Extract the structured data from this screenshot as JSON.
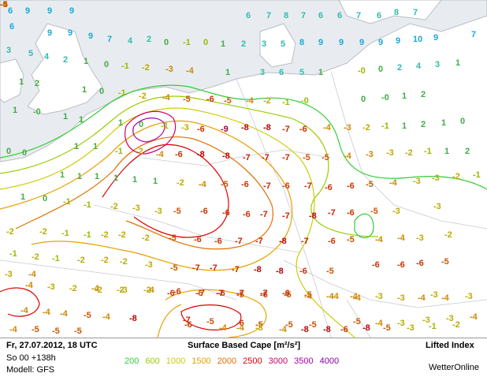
{
  "legend": {
    "date": "Fr, 27.07.2012, 18 UTC",
    "run": "So 00 +138h",
    "model": "Modell: GFS",
    "title": "Surface Based Cape [m²/s²]",
    "subtitle": "Lifted Index",
    "brand": "WetterOnline",
    "scale": [
      {
        "label": "200",
        "color": "#33cc33"
      },
      {
        "label": "600",
        "color": "#99cc00"
      },
      {
        "label": "1000",
        "color": "#cccc00"
      },
      {
        "label": "1500",
        "color": "#e6a000"
      },
      {
        "label": "2000",
        "color": "#e07000"
      },
      {
        "label": "2500",
        "color": "#dd0000"
      },
      {
        "label": "3000",
        "color": "#cc0066"
      },
      {
        "label": "3500",
        "color": "#aa00aa"
      },
      {
        "label": "4000",
        "color": "#8800aa"
      }
    ]
  },
  "map": {
    "labels": [
      {
        "v": "6",
        "c": "#1aa8d8"
      },
      {
        "v": "9",
        "c": "#1aa8d8"
      },
      {
        "v": "9",
        "c": "#1aa8d8"
      },
      {
        "v": "9",
        "c": "#1aa8d8"
      },
      {
        "v": "6",
        "c": "#33bbaa"
      },
      {
        "v": "7",
        "c": "#33bbaa"
      },
      {
        "v": "8",
        "c": "#33bbaa"
      },
      {
        "v": "7",
        "c": "#33bbaa"
      },
      {
        "v": "6",
        "c": "#33bbaa"
      },
      {
        "v": "6",
        "c": "#33bbaa"
      },
      {
        "v": "7",
        "c": "#33bbaa"
      },
      {
        "v": "6",
        "c": "#33bbaa"
      },
      {
        "v": "8",
        "c": "#33bbaa"
      },
      {
        "v": "7",
        "c": "#33bbaa"
      },
      {
        "v": "6",
        "c": "#1aa8d8"
      },
      {
        "v": "9",
        "c": "#1aa8d8"
      },
      {
        "v": "9",
        "c": "#1aa8d8"
      },
      {
        "v": "9",
        "c": "#1aa8d8"
      },
      {
        "v": "7",
        "c": "#1aa8d8"
      },
      {
        "v": "4",
        "c": "#33bbaa"
      },
      {
        "v": "2",
        "c": "#33bbaa"
      },
      {
        "v": "0",
        "c": "#44aa44"
      },
      {
        "v": "-1",
        "c": "#99bb00"
      },
      {
        "v": "0",
        "c": "#99bb00"
      },
      {
        "v": "1",
        "c": "#44aa44"
      },
      {
        "v": "2",
        "c": "#33bbaa"
      },
      {
        "v": "3",
        "c": "#33bbaa"
      },
      {
        "v": "5",
        "c": "#33bbaa"
      },
      {
        "v": "8",
        "c": "#1aa8d8"
      },
      {
        "v": "9",
        "c": "#1aa8d8"
      },
      {
        "v": "9",
        "c": "#1aa8d8"
      },
      {
        "v": "9",
        "c": "#1aa8d8"
      },
      {
        "v": "9",
        "c": "#1aa8d8"
      },
      {
        "v": "9",
        "c": "#1aa8d8"
      },
      {
        "v": "10",
        "c": "#1aa8d8"
      },
      {
        "v": "9",
        "c": "#1aa8d8"
      },
      {
        "v": "7",
        "c": "#1aa8d8"
      },
      {
        "v": "3",
        "c": "#33bbaa"
      },
      {
        "v": "5",
        "c": "#33bbaa"
      },
      {
        "v": "4",
        "c": "#33bbaa"
      },
      {
        "v": "2",
        "c": "#33bbaa"
      },
      {
        "v": "1",
        "c": "#44aa44"
      },
      {
        "v": "0",
        "c": "#44aa44"
      },
      {
        "v": "-1",
        "c": "#99bb00"
      },
      {
        "v": "-2",
        "c": "#bbaa00"
      },
      {
        "v": "-3",
        "c": "#cc8800"
      },
      {
        "v": "-4",
        "c": "#cc8800"
      },
      {
        "v": "1",
        "c": "#44aa44"
      },
      {
        "v": "3",
        "c": "#33bbaa"
      },
      {
        "v": "6",
        "c": "#33bbaa"
      },
      {
        "v": "5",
        "c": "#33bbaa"
      },
      {
        "v": "1",
        "c": "#44aa44"
      },
      {
        "v": "-0",
        "c": "#99bb00"
      },
      {
        "v": "0",
        "c": "#44aa44"
      },
      {
        "v": "2",
        "c": "#33bbaa"
      },
      {
        "v": "4",
        "c": "#33bbaa"
      },
      {
        "v": "3",
        "c": "#33bbaa"
      },
      {
        "v": "1",
        "c": "#44aa44"
      },
      {
        "v": "1",
        "c": "#44aa44"
      },
      {
        "v": "2",
        "c": "#44aa44"
      },
      {
        "v": "1",
        "c": "#44aa44"
      },
      {
        "v": "0",
        "c": "#44aa44"
      },
      {
        "v": "-1",
        "c": "#99bb00"
      },
      {
        "v": "-2",
        "c": "#bbaa00"
      },
      {
        "v": "-4",
        "c": "#cc8800"
      },
      {
        "v": "-5",
        "c": "#cc5500"
      },
      {
        "v": "-6",
        "c": "#cc3300"
      },
      {
        "v": "-5",
        "c": "#cc5500"
      },
      {
        "v": "-4",
        "c": "#cc8800"
      },
      {
        "v": "-2",
        "c": "#bbaa00"
      },
      {
        "v": "-1",
        "c": "#99bb00"
      },
      {
        "v": "-0",
        "c": "#99bb00"
      },
      {
        "v": "0",
        "c": "#44aa44"
      },
      {
        "v": "-0",
        "c": "#44aa44"
      },
      {
        "v": "1",
        "c": "#44aa44"
      },
      {
        "v": "2",
        "c": "#44aa44"
      },
      {
        "v": "1",
        "c": "#44aa44"
      },
      {
        "v": "-0",
        "c": "#44aa44"
      },
      {
        "v": "1",
        "c": "#44aa44"
      },
      {
        "v": "1",
        "c": "#44aa44"
      },
      {
        "v": "1",
        "c": "#44aa44"
      },
      {
        "v": "0",
        "c": "#44aa44"
      },
      {
        "v": "-1",
        "c": "#99bb00"
      },
      {
        "v": "-3",
        "c": "#bbaa00"
      },
      {
        "v": "-6",
        "c": "#cc3300"
      },
      {
        "v": "-9",
        "c": "#aa0044"
      },
      {
        "v": "-8",
        "c": "#bb0000"
      },
      {
        "v": "-8",
        "c": "#bb0000"
      },
      {
        "v": "-7",
        "c": "#cc2200"
      },
      {
        "v": "-6",
        "c": "#cc3300"
      },
      {
        "v": "-4",
        "c": "#cc8800"
      },
      {
        "v": "-3",
        "c": "#cc8800"
      },
      {
        "v": "-2",
        "c": "#bbaa00"
      },
      {
        "v": "-1",
        "c": "#99bb00"
      },
      {
        "v": "1",
        "c": "#44aa44"
      },
      {
        "v": "2",
        "c": "#44aa44"
      },
      {
        "v": "1",
        "c": "#44aa44"
      },
      {
        "v": "0",
        "c": "#44aa44"
      },
      {
        "v": "0",
        "c": "#44aa44"
      },
      {
        "v": "0",
        "c": "#44aa44"
      },
      {
        "v": "1",
        "c": "#44aa44"
      },
      {
        "v": "1",
        "c": "#44aa44"
      },
      {
        "v": "-1",
        "c": "#99bb00"
      },
      {
        "v": "-2",
        "c": "#bbaa00"
      },
      {
        "v": "-4",
        "c": "#cc8800"
      },
      {
        "v": "-6",
        "c": "#cc3300"
      },
      {
        "v": "-8",
        "c": "#bb0000"
      },
      {
        "v": "-8",
        "c": "#bb0000"
      },
      {
        "v": "-7",
        "c": "#cc2200"
      },
      {
        "v": "-7",
        "c": "#cc2200"
      },
      {
        "v": "-7",
        "c": "#cc2200"
      },
      {
        "v": "-5",
        "c": "#cc5500"
      },
      {
        "v": "-5",
        "c": "#cc5500"
      },
      {
        "v": "-4",
        "c": "#cc8800"
      },
      {
        "v": "-3",
        "c": "#cc8800"
      },
      {
        "v": "-3",
        "c": "#bbaa00"
      },
      {
        "v": "-2",
        "c": "#bbaa00"
      },
      {
        "v": "-1",
        "c": "#99bb00"
      },
      {
        "v": "1",
        "c": "#44aa44"
      },
      {
        "v": "2",
        "c": "#44aa44"
      },
      {
        "v": "1",
        "c": "#44aa44"
      },
      {
        "v": "1",
        "c": "#44aa44"
      },
      {
        "v": "1",
        "c": "#44aa44"
      },
      {
        "v": "1",
        "c": "#44aa44"
      },
      {
        "v": "1",
        "c": "#44aa44"
      },
      {
        "v": "1",
        "c": "#44aa44"
      },
      {
        "v": "-2",
        "c": "#bbaa00"
      },
      {
        "v": "-4",
        "c": "#cc8800"
      },
      {
        "v": "-5",
        "c": "#cc5500"
      },
      {
        "v": "-6",
        "c": "#cc3300"
      },
      {
        "v": "-7",
        "c": "#cc2200"
      },
      {
        "v": "-6",
        "c": "#cc3300"
      },
      {
        "v": "-7",
        "c": "#cc2200"
      },
      {
        "v": "-6",
        "c": "#cc3300"
      },
      {
        "v": "-6",
        "c": "#cc3300"
      },
      {
        "v": "-5",
        "c": "#cc5500"
      },
      {
        "v": "-4",
        "c": "#cc8800"
      },
      {
        "v": "-3",
        "c": "#bbaa00"
      },
      {
        "v": "-3",
        "c": "#bbaa00"
      },
      {
        "v": "-2",
        "c": "#bbaa00"
      },
      {
        "v": "-1",
        "c": "#99bb00"
      },
      {
        "v": "1",
        "c": "#44aa44"
      },
      {
        "v": "0",
        "c": "#44aa44"
      },
      {
        "v": "-1",
        "c": "#99bb00"
      },
      {
        "v": "-1",
        "c": "#99bb00"
      },
      {
        "v": "-2",
        "c": "#bbaa00"
      },
      {
        "v": "-3",
        "c": "#bbaa00"
      },
      {
        "v": "-3",
        "c": "#bbaa00"
      },
      {
        "v": "-5",
        "c": "#cc5500"
      },
      {
        "v": "-6",
        "c": "#cc3300"
      },
      {
        "v": "-6",
        "c": "#cc3300"
      },
      {
        "v": "-6",
        "c": "#cc3300"
      },
      {
        "v": "-7",
        "c": "#cc2200"
      },
      {
        "v": "-7",
        "c": "#cc2200"
      },
      {
        "v": "-8",
        "c": "#bb0000"
      },
      {
        "v": "-7",
        "c": "#cc2200"
      },
      {
        "v": "-6",
        "c": "#cc3300"
      },
      {
        "v": "-5",
        "c": "#cc5500"
      },
      {
        "v": "-3",
        "c": "#bbaa00"
      },
      {
        "v": "-3",
        "c": "#bbaa00"
      },
      {
        "v": "-2",
        "c": "#bbaa00"
      },
      {
        "v": "-2",
        "c": "#bbaa00"
      },
      {
        "v": "-1",
        "c": "#99bb00"
      },
      {
        "v": "-1",
        "c": "#99bb00"
      },
      {
        "v": "-2",
        "c": "#bbaa00"
      },
      {
        "v": "-2",
        "c": "#bbaa00"
      },
      {
        "v": "-2",
        "c": "#bbaa00"
      },
      {
        "v": "-5",
        "c": "#cc5500"
      },
      {
        "v": "-6",
        "c": "#cc3300"
      },
      {
        "v": "-6",
        "c": "#cc3300"
      },
      {
        "v": "-7",
        "c": "#cc2200"
      },
      {
        "v": "-7",
        "c": "#cc2200"
      },
      {
        "v": "-8",
        "c": "#bb0000"
      },
      {
        "v": "-7",
        "c": "#cc2200"
      },
      {
        "v": "-6",
        "c": "#cc3300"
      },
      {
        "v": "-5",
        "c": "#cc5500"
      },
      {
        "v": "-4",
        "c": "#cc8800"
      },
      {
        "v": "-4",
        "c": "#cc8800"
      },
      {
        "v": "-3",
        "c": "#bbaa00"
      },
      {
        "v": "-2",
        "c": "#bbaa00"
      },
      {
        "v": "-1",
        "c": "#99bb00"
      },
      {
        "v": "-2",
        "c": "#bbaa00"
      },
      {
        "v": "-1",
        "c": "#99bb00"
      },
      {
        "v": "-2",
        "c": "#bbaa00"
      },
      {
        "v": "-2",
        "c": "#bbaa00"
      },
      {
        "v": "-2",
        "c": "#bbaa00"
      },
      {
        "v": "-3",
        "c": "#bbaa00"
      },
      {
        "v": "-5",
        "c": "#cc5500"
      },
      {
        "v": "-7",
        "c": "#cc2200"
      },
      {
        "v": "-7",
        "c": "#cc2200"
      },
      {
        "v": "-7",
        "c": "#cc2200"
      },
      {
        "v": "-8",
        "c": "#bb0000"
      },
      {
        "v": "-8",
        "c": "#bb0000"
      },
      {
        "v": "-6",
        "c": "#cc3300"
      },
      {
        "v": "-5",
        "c": "#cc5500"
      },
      {
        "v": "-6",
        "c": "#cc3300"
      },
      {
        "v": "-6",
        "c": "#cc3300"
      },
      {
        "v": "-6",
        "c": "#cc3300"
      },
      {
        "v": "-5",
        "c": "#cc5500"
      },
      {
        "v": "-4",
        "c": "#cc8800"
      },
      {
        "v": "-3",
        "c": "#bbaa00"
      },
      {
        "v": "-2",
        "c": "#bbaa00"
      },
      {
        "v": "-2",
        "c": "#bbaa00"
      },
      {
        "v": "-3",
        "c": "#bbaa00"
      },
      {
        "v": "-4",
        "c": "#cc8800"
      },
      {
        "v": "-6",
        "c": "#cc3300"
      },
      {
        "v": "-7",
        "c": "#cc2200"
      },
      {
        "v": "-6",
        "c": "#cc3300"
      },
      {
        "v": "-5",
        "c": "#cc5500"
      },
      {
        "v": "-6",
        "c": "#cc3300"
      },
      {
        "v": "-5",
        "c": "#cc5500"
      },
      {
        "v": "-4",
        "c": "#cc8800"
      },
      {
        "v": "-4",
        "c": "#cc8800"
      },
      {
        "v": "-4",
        "c": "#cc8800"
      },
      {
        "v": "-3",
        "c": "#bbaa00"
      },
      {
        "v": "-3",
        "c": "#bbaa00"
      },
      {
        "v": "-3",
        "c": "#bbaa00"
      },
      {
        "v": "-4",
        "c": "#cc8800"
      },
      {
        "v": "-4",
        "c": "#cc8800"
      },
      {
        "v": "-2",
        "c": "#bbaa00"
      },
      {
        "v": "-2",
        "c": "#bbaa00"
      },
      {
        "v": "-6",
        "c": "#cc3300"
      },
      {
        "v": "-5",
        "c": "#cc5500"
      },
      {
        "v": "-7",
        "c": "#cc2200"
      },
      {
        "v": "-7",
        "c": "#cc2200"
      },
      {
        "v": "-7",
        "c": "#cc2200"
      },
      {
        "v": "-6",
        "c": "#cc3300"
      },
      {
        "v": "-5",
        "c": "#cc5500"
      },
      {
        "v": "-4",
        "c": "#cc8800"
      },
      {
        "v": "-4",
        "c": "#cc8800"
      },
      {
        "v": "-3",
        "c": "#bbaa00"
      },
      {
        "v": "-4",
        "c": "#cc8800"
      },
      {
        "v": "-4",
        "c": "#cc8800"
      },
      {
        "v": "-3",
        "c": "#bbaa00"
      },
      {
        "v": "-4",
        "c": "#cc8800"
      },
      {
        "v": "-4",
        "c": "#cc8800"
      },
      {
        "v": "-4",
        "c": "#cc8800"
      },
      {
        "v": "-5",
        "c": "#cc5500"
      },
      {
        "v": "-4",
        "c": "#cc8800"
      },
      {
        "v": "-8",
        "c": "#bb0000"
      },
      {
        "v": "-7",
        "c": "#cc2200"
      },
      {
        "v": "-5",
        "c": "#cc5500"
      },
      {
        "v": "-6",
        "c": "#cc3300"
      },
      {
        "v": "-5",
        "c": "#cc5500"
      },
      {
        "v": "-5",
        "c": "#cc5500"
      },
      {
        "v": "-5",
        "c": "#cc5500"
      },
      {
        "v": "-5",
        "c": "#cc5500"
      },
      {
        "v": "-4",
        "c": "#cc8800"
      },
      {
        "v": "-3",
        "c": "#bbaa00"
      },
      {
        "v": "-3",
        "c": "#bbaa00"
      },
      {
        "v": "-3",
        "c": "#bbaa00"
      },
      {
        "v": "-4",
        "c": "#cc8800"
      },
      {
        "v": "-4",
        "c": "#cc8800"
      },
      {
        "v": "-5",
        "c": "#cc5500"
      },
      {
        "v": "-5",
        "c": "#cc5500"
      },
      {
        "v": "-5",
        "c": "#cc5500"
      },
      {
        "v": "-6",
        "c": "#cc3300"
      },
      {
        "v": "-4",
        "c": "#cc8800"
      },
      {
        "v": "-4",
        "c": "#cc8800"
      },
      {
        "v": "-3",
        "c": "#bbaa00"
      },
      {
        "v": "-4",
        "c": "#cc8800"
      },
      {
        "v": "-8",
        "c": "#bb0000"
      },
      {
        "v": "-8",
        "c": "#bb0000"
      },
      {
        "v": "-6",
        "c": "#cc3300"
      },
      {
        "v": "-8",
        "c": "#bb0000"
      },
      {
        "v": "-5",
        "c": "#cc5500"
      },
      {
        "v": "-3",
        "c": "#bbaa00"
      },
      {
        "v": "-1",
        "c": "#99bb00"
      },
      {
        "v": "-2",
        "c": "#bbaa00"
      },
      {
        "v": "-3",
        "c": "#bbaa00"
      },
      {
        "v": "-4",
        "c": "#cc8800"
      },
      {
        "v": "-4",
        "c": "#cc8800"
      },
      {
        "v": "-5",
        "c": "#cc5500"
      },
      {
        "v": "-5",
        "c": "#cc5500"
      }
    ]
  }
}
